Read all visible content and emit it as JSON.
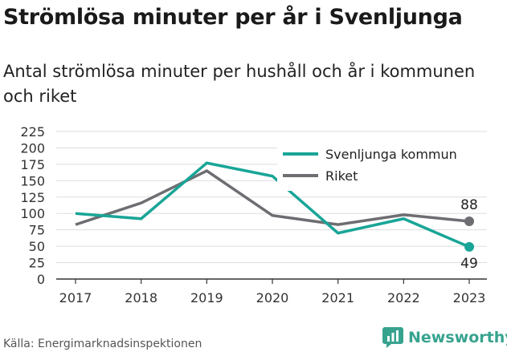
{
  "title": "Strömlösa minuter per år i Svenljunga",
  "subtitle": "Antal strömlösa minuter per hushåll och år i kommunen och riket",
  "source": "Källa: Energimarknadsinspektionen",
  "brand": "Newsworthy",
  "brand_icon": "chart-logo-icon",
  "colors": {
    "svenljunga": "#18a597",
    "riket": "#6d6d72",
    "grid": "#dddddd",
    "axis": "#333333"
  },
  "chart_data": {
    "type": "line",
    "x": [
      "2017",
      "2018",
      "2019",
      "2020",
      "2021",
      "2022",
      "2023"
    ],
    "ylim": [
      0,
      225
    ],
    "yticks": [
      0,
      25,
      50,
      75,
      100,
      125,
      150,
      175,
      200,
      225
    ],
    "grid": true,
    "legend_position": "top-right",
    "series": [
      {
        "name": "Svenljunga kommun",
        "values": [
          100,
          92,
          177,
          157,
          70,
          92,
          49
        ],
        "end_label": "49"
      },
      {
        "name": "Riket",
        "values": [
          83,
          116,
          165,
          97,
          83,
          98,
          88
        ],
        "end_label": "88"
      }
    ]
  }
}
